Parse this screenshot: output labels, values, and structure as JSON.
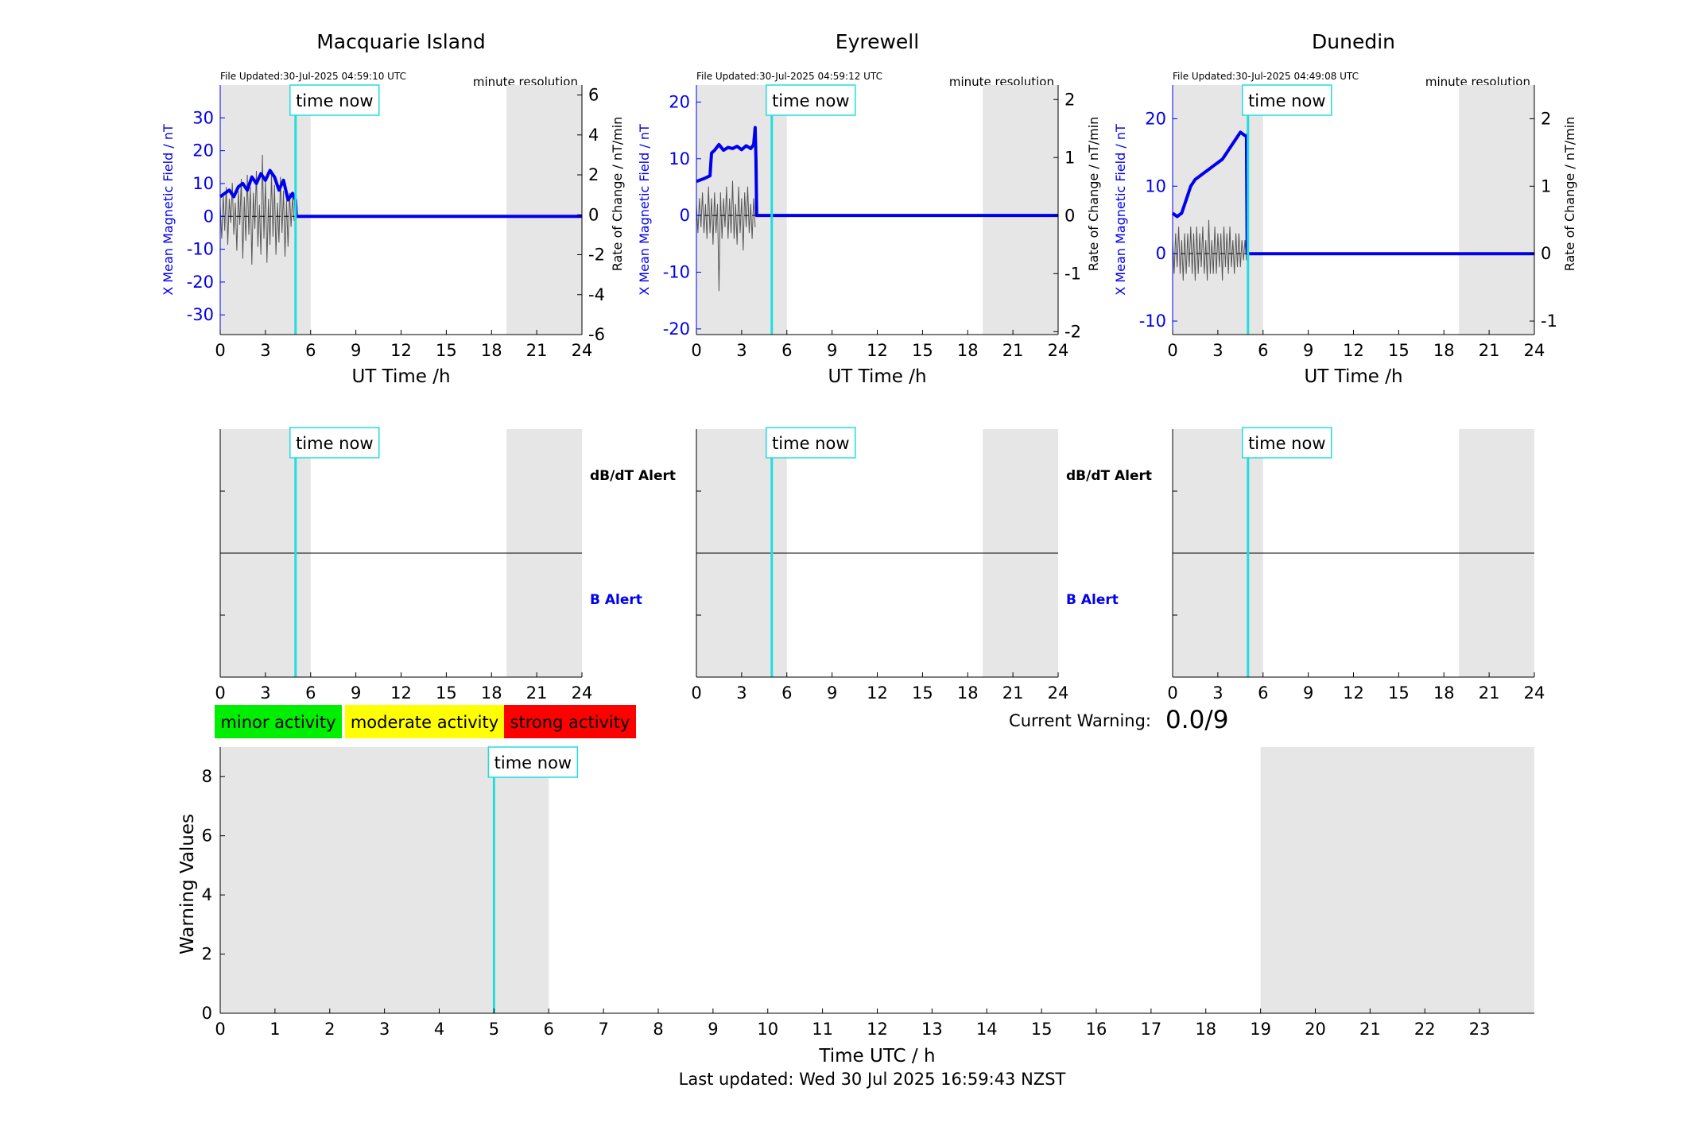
{
  "colors": {
    "field": "#0000ee",
    "rate": "#000000",
    "time_now": "#22dddd",
    "shade": "#e6e6e6",
    "minor": "#00ee00",
    "moderate": "#ffff00",
    "strong": "#ff0000",
    "b_alert": "#0000ee"
  },
  "legend": {
    "minor": "minor activity",
    "moderate": "moderate activity",
    "strong": "strong activity"
  },
  "time_now_label": "time now",
  "current_warning": {
    "label": "Current Warning:",
    "value": "0.0/9"
  },
  "footer": {
    "last_updated": "Last updated: Wed 30 Jul 2025 16:59:43 NZST"
  },
  "chart_data": [
    {
      "type": "line",
      "title": "Macquarie Island",
      "file_updated": "File Updated:30-Jul-2025 04:59:10 UTC",
      "resolution": "minute resolution",
      "xlabel": "UT Time /h",
      "ylabel": "X Mean Magnetic Field / nT",
      "y2label": "Rate of Change / nT/min",
      "xlim": [
        0,
        24
      ],
      "xticks": [
        0,
        3,
        6,
        9,
        12,
        15,
        18,
        21,
        24
      ],
      "ylim": [
        -36,
        40
      ],
      "yticks": [
        -30,
        -20,
        -10,
        0,
        10,
        20,
        30
      ],
      "y2lim": [
        -6,
        6.5
      ],
      "y2ticks": [
        -6,
        -4,
        -2,
        0,
        2,
        4,
        6
      ],
      "shade": [
        [
          0,
          6
        ],
        [
          19,
          24
        ]
      ],
      "time_now": 5.0,
      "field_x": [
        0,
        0.3,
        0.6,
        0.9,
        1.2,
        1.5,
        1.8,
        2.1,
        2.4,
        2.7,
        3.0,
        3.3,
        3.6,
        3.9,
        4.2,
        4.5,
        4.8,
        5.0,
        5.05,
        24
      ],
      "field_y": [
        6,
        7,
        8,
        6,
        9,
        10,
        8,
        12,
        10,
        13,
        11,
        14,
        12,
        8,
        11,
        5,
        7,
        5,
        0,
        0
      ],
      "rate_x": [
        0,
        0.1,
        0.2,
        0.3,
        0.4,
        0.5,
        0.6,
        0.7,
        0.8,
        0.9,
        1.0,
        1.1,
        1.2,
        1.3,
        1.4,
        1.5,
        1.6,
        1.7,
        1.8,
        1.9,
        2.0,
        2.1,
        2.2,
        2.3,
        2.4,
        2.5,
        2.6,
        2.7,
        2.8,
        2.9,
        3.0,
        3.1,
        3.2,
        3.3,
        3.4,
        3.5,
        3.6,
        3.7,
        3.8,
        3.9,
        4.0,
        4.1,
        4.2,
        4.3,
        4.4,
        4.5,
        4.6,
        4.7,
        4.8,
        4.9
      ],
      "rate_y": [
        0.5,
        -1.2,
        1.0,
        -0.8,
        1.4,
        -1.5,
        0.8,
        -0.4,
        1.6,
        -1.0,
        0.6,
        -1.8,
        1.2,
        -0.5,
        1.8,
        -2.2,
        0.9,
        -1.3,
        2.0,
        -1.0,
        1.4,
        -2.5,
        1.1,
        -0.7,
        2.2,
        -1.6,
        0.5,
        -2.0,
        3.0,
        -1.2,
        1.7,
        -2.4,
        0.8,
        -1.5,
        2.1,
        -1.1,
        1.5,
        -2.0,
        0.6,
        -1.4,
        1.9,
        -0.9,
        1.2,
        -2.1,
        0.7,
        -1.6,
        1.1,
        -0.6,
        0.9,
        -0.3
      ]
    },
    {
      "type": "line",
      "title": "Eyrewell",
      "file_updated": "File Updated:30-Jul-2025 04:59:12 UTC",
      "resolution": "minute resolution",
      "xlabel": "UT Time /h",
      "ylabel": "X Mean Magnetic Field / nT",
      "y2label": "Rate of Change / nT/min",
      "xlim": [
        0,
        24
      ],
      "xticks": [
        0,
        3,
        6,
        9,
        12,
        15,
        18,
        21,
        24
      ],
      "ylim": [
        -21,
        23
      ],
      "yticks": [
        -20,
        -10,
        0,
        10,
        20
      ],
      "y2lim": [
        -2.05,
        2.25
      ],
      "y2ticks": [
        -2,
        -1,
        0,
        1,
        2
      ],
      "shade": [
        [
          0,
          6
        ],
        [
          19,
          24
        ]
      ],
      "time_now": 5.0,
      "field_x": [
        0,
        0.5,
        0.9,
        1.0,
        1.2,
        1.5,
        1.8,
        2.1,
        2.4,
        2.7,
        3.0,
        3.3,
        3.6,
        3.8,
        3.9,
        3.95,
        4.0,
        24
      ],
      "field_y": [
        6,
        6.5,
        7,
        11,
        11.5,
        12.5,
        11.5,
        12,
        11.8,
        12.2,
        11.6,
        12.3,
        11.8,
        12.5,
        15.5,
        10,
        0,
        0
      ],
      "rate_x": [
        0,
        0.1,
        0.2,
        0.3,
        0.4,
        0.5,
        0.6,
        0.7,
        0.8,
        0.9,
        1.0,
        1.1,
        1.2,
        1.3,
        1.4,
        1.5,
        1.6,
        1.7,
        1.8,
        1.9,
        2.0,
        2.1,
        2.2,
        2.3,
        2.4,
        2.5,
        2.6,
        2.7,
        2.8,
        2.9,
        3.0,
        3.1,
        3.2,
        3.3,
        3.4,
        3.5,
        3.6,
        3.7,
        3.8,
        3.9
      ],
      "rate_y": [
        0.2,
        -0.3,
        0.3,
        -0.2,
        0.4,
        -0.3,
        0.2,
        -0.4,
        0.5,
        -0.3,
        0.3,
        -0.5,
        0.4,
        -0.3,
        0.2,
        -1.3,
        0.4,
        -0.4,
        0.3,
        -0.2,
        0.5,
        -0.4,
        0.3,
        -0.3,
        0.6,
        -0.4,
        0.2,
        -0.5,
        0.5,
        -0.3,
        0.3,
        -0.6,
        0.4,
        -0.2,
        0.5,
        -0.3,
        0.2,
        -0.4,
        0.3,
        -0.2
      ]
    },
    {
      "type": "line",
      "title": "Dunedin",
      "file_updated": "File Updated:30-Jul-2025 04:49:08 UTC",
      "resolution": "minute resolution",
      "xlabel": "UT Time /h",
      "ylabel": "X Mean Magnetic Field / nT",
      "y2label": "Rate of Change / nT/min",
      "xlim": [
        0,
        24
      ],
      "xticks": [
        0,
        3,
        6,
        9,
        12,
        15,
        18,
        21,
        24
      ],
      "ylim": [
        -12,
        25
      ],
      "yticks": [
        -10,
        0,
        10,
        20
      ],
      "y2lim": [
        -1.2,
        2.5
      ],
      "y2ticks": [
        -1,
        0,
        1,
        2
      ],
      "shade": [
        [
          0,
          6
        ],
        [
          19,
          24
        ]
      ],
      "time_now": 5.0,
      "field_x": [
        0,
        0.3,
        0.6,
        0.9,
        1.2,
        1.5,
        1.8,
        2.1,
        2.4,
        2.7,
        3.0,
        3.3,
        3.6,
        3.9,
        4.2,
        4.5,
        4.8,
        4.9,
        4.95,
        24
      ],
      "field_y": [
        6,
        5.5,
        6,
        8,
        10,
        11,
        11.5,
        12,
        12.5,
        13,
        13.5,
        14,
        15,
        16,
        17,
        18,
        17.5,
        17.5,
        0,
        0
      ],
      "rate_x": [
        0,
        0.1,
        0.2,
        0.3,
        0.4,
        0.5,
        0.6,
        0.7,
        0.8,
        0.9,
        1.0,
        1.1,
        1.2,
        1.3,
        1.4,
        1.5,
        1.6,
        1.7,
        1.8,
        1.9,
        2.0,
        2.1,
        2.2,
        2.3,
        2.4,
        2.5,
        2.6,
        2.7,
        2.8,
        2.9,
        3.0,
        3.1,
        3.2,
        3.3,
        3.4,
        3.5,
        3.6,
        3.7,
        3.8,
        3.9,
        4.0,
        4.1,
        4.2,
        4.3,
        4.4,
        4.5,
        4.6,
        4.7,
        4.8,
        4.9
      ],
      "rate_y": [
        0.2,
        -0.3,
        0.3,
        -0.2,
        0.4,
        -0.3,
        0.2,
        -0.4,
        0.3,
        -0.3,
        0.3,
        -0.2,
        0.4,
        -0.3,
        0.3,
        -0.4,
        0.4,
        -0.3,
        0.3,
        -0.2,
        0.4,
        -0.3,
        0.2,
        -0.4,
        0.5,
        -0.3,
        0.2,
        -0.3,
        0.4,
        -0.3,
        0.3,
        -0.2,
        0.3,
        -0.4,
        0.4,
        -0.2,
        0.3,
        -0.3,
        0.4,
        -0.2,
        0.2,
        -0.3,
        0.3,
        -0.2,
        0.3,
        -0.2,
        0.2,
        -0.1,
        0.2,
        -0.1
      ]
    },
    {
      "type": "line",
      "title": "",
      "xlim": [
        0,
        24
      ],
      "xticks": [
        0,
        3,
        6,
        9,
        12,
        15,
        18,
        21,
        24
      ],
      "shade": [
        [
          0,
          6
        ],
        [
          19,
          24
        ]
      ],
      "time_now": 5.0,
      "alert_labels": [
        "dB/dT Alert",
        "B Alert"
      ],
      "dbdt_alert": [],
      "b_alert": []
    },
    {
      "type": "line",
      "title": "",
      "xlim": [
        0,
        24
      ],
      "xticks": [
        0,
        3,
        6,
        9,
        12,
        15,
        18,
        21,
        24
      ],
      "shade": [
        [
          0,
          6
        ],
        [
          19,
          24
        ]
      ],
      "time_now": 5.0,
      "alert_labels": [
        "dB/dT Alert",
        "B Alert"
      ],
      "dbdt_alert": [],
      "b_alert": []
    },
    {
      "type": "line",
      "title": "",
      "xlim": [
        0,
        24
      ],
      "xticks": [
        0,
        3,
        6,
        9,
        12,
        15,
        18,
        21,
        24
      ],
      "shade": [
        [
          0,
          6
        ],
        [
          19,
          24
        ]
      ],
      "time_now": 5.0,
      "dbdt_alert": [],
      "b_alert": []
    },
    {
      "type": "bar",
      "title": "",
      "xlabel": "Time UTC / h",
      "ylabel": "Warning Values",
      "xlim": [
        0,
        24
      ],
      "xticks": [
        0,
        1,
        2,
        3,
        4,
        5,
        6,
        7,
        8,
        9,
        10,
        11,
        12,
        13,
        14,
        15,
        16,
        17,
        18,
        19,
        20,
        21,
        22,
        23
      ],
      "ylim": [
        0,
        9
      ],
      "yticks": [
        0,
        2,
        4,
        6,
        8
      ],
      "shade": [
        [
          0,
          6
        ],
        [
          19,
          24
        ]
      ],
      "time_now": 5.0,
      "values": []
    }
  ]
}
